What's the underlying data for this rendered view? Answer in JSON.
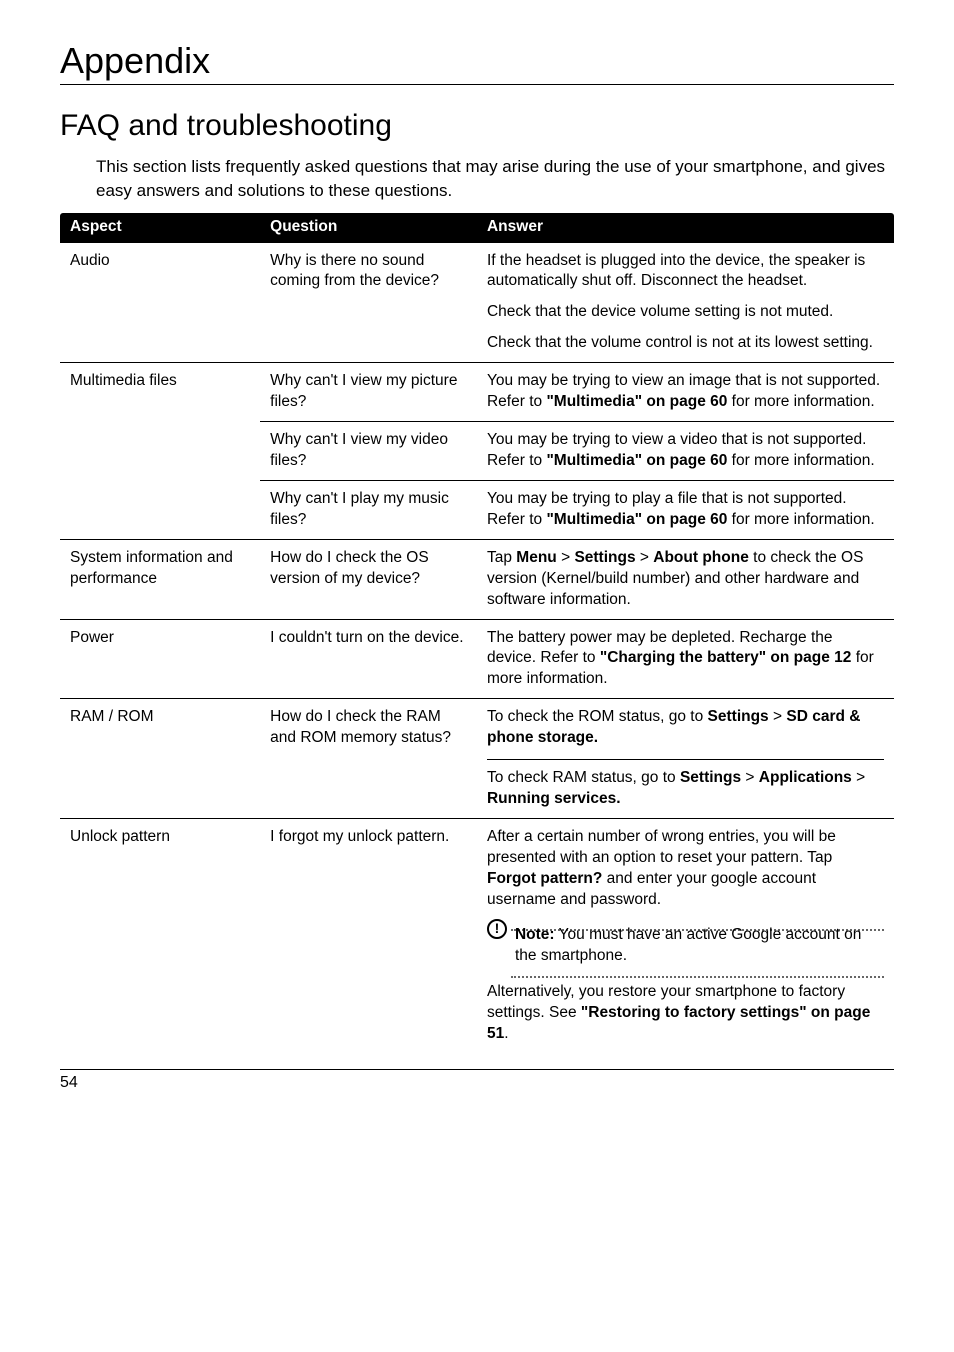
{
  "page": {
    "title": "Appendix",
    "section": "FAQ and troubleshooting",
    "intro": "This section lists frequently asked questions that may arise during the use of your smartphone, and gives easy answers and solutions to these questions.",
    "footer_page_number": "54"
  },
  "table": {
    "headers": {
      "aspect": "Aspect",
      "question": "Question",
      "answer": "Answer"
    },
    "rows": [
      {
        "aspect": "Audio",
        "question": "Why is there no sound coming from the device?",
        "answers": [
          {
            "parts": [
              {
                "t": "If the headset is plugged into the device, the speaker is automatically shut off. Disconnect the headset."
              }
            ]
          },
          {
            "parts": [
              {
                "t": "Check that the device volume setting is not muted."
              }
            ]
          },
          {
            "parts": [
              {
                "t": "Check that the volume control is not at its lowest setting."
              }
            ]
          }
        ],
        "sep": "full"
      },
      {
        "aspect": "Multimedia files",
        "question": "Why can't I view my picture files?",
        "answers": [
          {
            "parts": [
              {
                "t": "You may be trying to view an image that is not supported. Refer to "
              },
              {
                "t": "\"Multimedia\" on page 60",
                "bold": true
              },
              {
                "t": " for more information."
              }
            ]
          }
        ],
        "sep": "full"
      },
      {
        "aspect": "",
        "question": "Why can't I view my video files?",
        "answers": [
          {
            "parts": [
              {
                "t": "You may be trying to view a video that is not supported. Refer to "
              },
              {
                "t": "\"Multimedia\" on page 60",
                "bold": true
              },
              {
                "t": " for more information."
              }
            ]
          }
        ],
        "sep": "sub"
      },
      {
        "aspect": "",
        "question": "Why can't I play my music files?",
        "answers": [
          {
            "parts": [
              {
                "t": "You may be trying to play a file that is not supported. Refer to "
              },
              {
                "t": "\"Multimedia\" on page 60",
                "bold": true
              },
              {
                "t": " for more information."
              }
            ]
          }
        ],
        "sep": "sub"
      },
      {
        "aspect": "System information and performance",
        "question": "How do I check the OS version of my device?",
        "answers": [
          {
            "parts": [
              {
                "t": "Tap "
              },
              {
                "t": "Menu",
                "bold": true
              },
              {
                "t": " > "
              },
              {
                "t": "Settings",
                "bold": true
              },
              {
                "t": " > "
              },
              {
                "t": "About phone",
                "bold": true
              },
              {
                "t": " to check the OS version (Kernel/build number) and other hardware and software information."
              }
            ]
          }
        ],
        "sep": "full"
      },
      {
        "aspect": "Power",
        "question": "I couldn't turn on the device.",
        "answers": [
          {
            "parts": [
              {
                "t": "The battery power may be depleted. Recharge the device. Refer to "
              },
              {
                "t": "\"Charging the battery\" on page 12",
                "bold": true
              },
              {
                "t": " for more information."
              }
            ]
          }
        ],
        "sep": "full"
      },
      {
        "aspect": "RAM / ROM",
        "question": "How do I check the RAM and ROM memory status?",
        "answers": [
          {
            "parts": [
              {
                "t": "To check the ROM status, go to "
              },
              {
                "t": "Settings",
                "bold": true
              },
              {
                "t": " > "
              },
              {
                "t": "SD card & phone storage.",
                "bold": true
              }
            ]
          },
          {
            "subsep": true,
            "parts": [
              {
                "t": "To check RAM status, go to "
              },
              {
                "t": "Settings",
                "bold": true
              },
              {
                "t": " > "
              },
              {
                "t": "Applications",
                "bold": true
              },
              {
                "t": " > "
              },
              {
                "t": "Running services.",
                "bold": true
              }
            ]
          }
        ],
        "sep": "full"
      },
      {
        "aspect": "Unlock pattern",
        "question": "I forgot my unlock pattern.",
        "answers": [
          {
            "parts": [
              {
                "t": "After a certain number of wrong entries, you will be presented with an option to reset your pattern. Tap "
              },
              {
                "t": "Forgot pattern?",
                "bold": true
              },
              {
                "t": " and enter your google account username and password."
              }
            ]
          },
          {
            "note": true,
            "parts": [
              {
                "t": "Note:",
                "bold": true
              },
              {
                "t": " You must have an active Google account on the smartphone."
              }
            ]
          },
          {
            "parts": [
              {
                "t": "Alternatively, you restore your smartphone to factory settings. See "
              },
              {
                "t": "\"Restoring to factory settings\" on page 51",
                "bold": true
              },
              {
                "t": "."
              }
            ]
          }
        ],
        "sep": "full"
      }
    ]
  }
}
